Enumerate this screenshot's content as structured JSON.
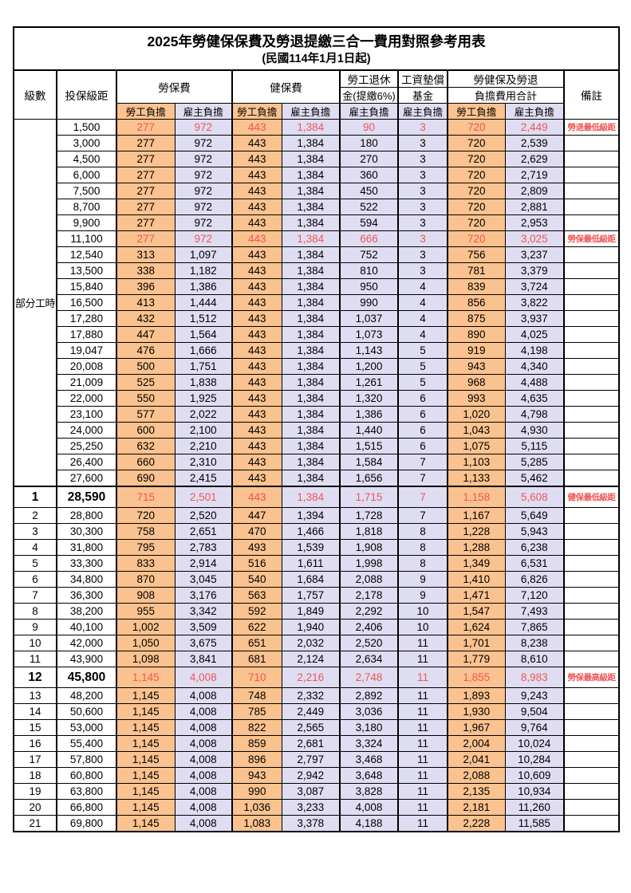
{
  "colors": {
    "employee_bg": "#FAC28F",
    "employer_bg": "#DFDDF2",
    "highlight_text": "#F25555",
    "border": "#000000"
  },
  "table": {
    "title": "2025年勞健保保費及勞退提繳三合一費用對照參考用表",
    "subtitle": "(民國114年1月1日起)",
    "columns": {
      "level": "級數",
      "bracket": "投保級距",
      "labor": "勞保費",
      "health": "健保費",
      "pension_l1": "勞工退休",
      "pension_l2": "金(提繳6%)",
      "fund_l1": "工資墊償",
      "fund_l2": "基金",
      "total_l1": "勞健保及勞退",
      "total_l2": "負擔費用合計",
      "remark": "備註",
      "employee": "勞工負擔",
      "employer": "雇主負擔"
    },
    "part_time_label": "部分工時",
    "rows": [
      {
        "level": "",
        "bracket": "1,500",
        "values": [
          "277",
          "972",
          "443",
          "1,384",
          "90",
          "3",
          "720",
          "2,449"
        ],
        "remark": "勞退最低級距",
        "highlight": true,
        "emphasis": false
      },
      {
        "level": "",
        "bracket": "3,000",
        "values": [
          "277",
          "972",
          "443",
          "1,384",
          "180",
          "3",
          "720",
          "2,539"
        ],
        "remark": "",
        "highlight": false,
        "emphasis": false
      },
      {
        "level": "",
        "bracket": "4,500",
        "values": [
          "277",
          "972",
          "443",
          "1,384",
          "270",
          "3",
          "720",
          "2,629"
        ],
        "remark": "",
        "highlight": false,
        "emphasis": false
      },
      {
        "level": "",
        "bracket": "6,000",
        "values": [
          "277",
          "972",
          "443",
          "1,384",
          "360",
          "3",
          "720",
          "2,719"
        ],
        "remark": "",
        "highlight": false,
        "emphasis": false
      },
      {
        "level": "",
        "bracket": "7,500",
        "values": [
          "277",
          "972",
          "443",
          "1,384",
          "450",
          "3",
          "720",
          "2,809"
        ],
        "remark": "",
        "highlight": false,
        "emphasis": false
      },
      {
        "level": "",
        "bracket": "8,700",
        "values": [
          "277",
          "972",
          "443",
          "1,384",
          "522",
          "3",
          "720",
          "2,881"
        ],
        "remark": "",
        "highlight": false,
        "emphasis": false
      },
      {
        "level": "",
        "bracket": "9,900",
        "values": [
          "277",
          "972",
          "443",
          "1,384",
          "594",
          "3",
          "720",
          "2,953"
        ],
        "remark": "",
        "highlight": false,
        "emphasis": false
      },
      {
        "level": "",
        "bracket": "11,100",
        "values": [
          "277",
          "972",
          "443",
          "1,384",
          "666",
          "3",
          "720",
          "3,025"
        ],
        "remark": "勞保最低級距",
        "highlight": true,
        "emphasis": false
      },
      {
        "level": "",
        "bracket": "12,540",
        "values": [
          "313",
          "1,097",
          "443",
          "1,384",
          "752",
          "3",
          "756",
          "3,237"
        ],
        "remark": "",
        "highlight": false,
        "emphasis": false
      },
      {
        "level": "",
        "bracket": "13,500",
        "values": [
          "338",
          "1,182",
          "443",
          "1,384",
          "810",
          "3",
          "781",
          "3,379"
        ],
        "remark": "",
        "highlight": false,
        "emphasis": false
      },
      {
        "level": "",
        "bracket": "15,840",
        "values": [
          "396",
          "1,386",
          "443",
          "1,384",
          "950",
          "4",
          "839",
          "3,724"
        ],
        "remark": "",
        "highlight": false,
        "emphasis": false
      },
      {
        "level": "",
        "bracket": "16,500",
        "values": [
          "413",
          "1,444",
          "443",
          "1,384",
          "990",
          "4",
          "856",
          "3,822"
        ],
        "remark": "",
        "highlight": false,
        "emphasis": false
      },
      {
        "level": "",
        "bracket": "17,280",
        "values": [
          "432",
          "1,512",
          "443",
          "1,384",
          "1,037",
          "4",
          "875",
          "3,937"
        ],
        "remark": "",
        "highlight": false,
        "emphasis": false
      },
      {
        "level": "",
        "bracket": "17,880",
        "values": [
          "447",
          "1,564",
          "443",
          "1,384",
          "1,073",
          "4",
          "890",
          "4,025"
        ],
        "remark": "",
        "highlight": false,
        "emphasis": false
      },
      {
        "level": "",
        "bracket": "19,047",
        "values": [
          "476",
          "1,666",
          "443",
          "1,384",
          "1,143",
          "5",
          "919",
          "4,198"
        ],
        "remark": "",
        "highlight": false,
        "emphasis": false
      },
      {
        "level": "",
        "bracket": "20,008",
        "values": [
          "500",
          "1,751",
          "443",
          "1,384",
          "1,200",
          "5",
          "943",
          "4,340"
        ],
        "remark": "",
        "highlight": false,
        "emphasis": false
      },
      {
        "level": "",
        "bracket": "21,009",
        "values": [
          "525",
          "1,838",
          "443",
          "1,384",
          "1,261",
          "5",
          "968",
          "4,488"
        ],
        "remark": "",
        "highlight": false,
        "emphasis": false
      },
      {
        "level": "",
        "bracket": "22,000",
        "values": [
          "550",
          "1,925",
          "443",
          "1,384",
          "1,320",
          "6",
          "993",
          "4,635"
        ],
        "remark": "",
        "highlight": false,
        "emphasis": false
      },
      {
        "level": "",
        "bracket": "23,100",
        "values": [
          "577",
          "2,022",
          "443",
          "1,384",
          "1,386",
          "6",
          "1,020",
          "4,798"
        ],
        "remark": "",
        "highlight": false,
        "emphasis": false
      },
      {
        "level": "",
        "bracket": "24,000",
        "values": [
          "600",
          "2,100",
          "443",
          "1,384",
          "1,440",
          "6",
          "1,043",
          "4,930"
        ],
        "remark": "",
        "highlight": false,
        "emphasis": false
      },
      {
        "level": "",
        "bracket": "25,250",
        "values": [
          "632",
          "2,210",
          "443",
          "1,384",
          "1,515",
          "6",
          "1,075",
          "5,115"
        ],
        "remark": "",
        "highlight": false,
        "emphasis": false
      },
      {
        "level": "",
        "bracket": "26,400",
        "values": [
          "660",
          "2,310",
          "443",
          "1,384",
          "1,584",
          "7",
          "1,103",
          "5,285"
        ],
        "remark": "",
        "highlight": false,
        "emphasis": false
      },
      {
        "level": "",
        "bracket": "27,600",
        "values": [
          "690",
          "2,415",
          "443",
          "1,384",
          "1,656",
          "7",
          "1,133",
          "5,462"
        ],
        "remark": "",
        "highlight": false,
        "emphasis": false
      },
      {
        "level": "1",
        "bracket": "28,590",
        "values": [
          "715",
          "2,501",
          "443",
          "1,384",
          "1,715",
          "7",
          "1,158",
          "5,608"
        ],
        "remark": "健保最低級距",
        "highlight": true,
        "emphasis": true
      },
      {
        "level": "2",
        "bracket": "28,800",
        "values": [
          "720",
          "2,520",
          "447",
          "1,394",
          "1,728",
          "7",
          "1,167",
          "5,649"
        ],
        "remark": "",
        "highlight": false,
        "emphasis": false
      },
      {
        "level": "3",
        "bracket": "30,300",
        "values": [
          "758",
          "2,651",
          "470",
          "1,466",
          "1,818",
          "8",
          "1,228",
          "5,943"
        ],
        "remark": "",
        "highlight": false,
        "emphasis": false
      },
      {
        "level": "4",
        "bracket": "31,800",
        "values": [
          "795",
          "2,783",
          "493",
          "1,539",
          "1,908",
          "8",
          "1,288",
          "6,238"
        ],
        "remark": "",
        "highlight": false,
        "emphasis": false
      },
      {
        "level": "5",
        "bracket": "33,300",
        "values": [
          "833",
          "2,914",
          "516",
          "1,611",
          "1,998",
          "8",
          "1,349",
          "6,531"
        ],
        "remark": "",
        "highlight": false,
        "emphasis": false
      },
      {
        "level": "6",
        "bracket": "34,800",
        "values": [
          "870",
          "3,045",
          "540",
          "1,684",
          "2,088",
          "9",
          "1,410",
          "6,826"
        ],
        "remark": "",
        "highlight": false,
        "emphasis": false
      },
      {
        "level": "7",
        "bracket": "36,300",
        "values": [
          "908",
          "3,176",
          "563",
          "1,757",
          "2,178",
          "9",
          "1,471",
          "7,120"
        ],
        "remark": "",
        "highlight": false,
        "emphasis": false
      },
      {
        "level": "8",
        "bracket": "38,200",
        "values": [
          "955",
          "3,342",
          "592",
          "1,849",
          "2,292",
          "10",
          "1,547",
          "7,493"
        ],
        "remark": "",
        "highlight": false,
        "emphasis": false
      },
      {
        "level": "9",
        "bracket": "40,100",
        "values": [
          "1,002",
          "3,509",
          "622",
          "1,940",
          "2,406",
          "10",
          "1,624",
          "7,865"
        ],
        "remark": "",
        "highlight": false,
        "emphasis": false
      },
      {
        "level": "10",
        "bracket": "42,000",
        "values": [
          "1,050",
          "3,675",
          "651",
          "2,032",
          "2,520",
          "11",
          "1,701",
          "8,238"
        ],
        "remark": "",
        "highlight": false,
        "emphasis": false
      },
      {
        "level": "11",
        "bracket": "43,900",
        "values": [
          "1,098",
          "3,841",
          "681",
          "2,124",
          "2,634",
          "11",
          "1,779",
          "8,610"
        ],
        "remark": "",
        "highlight": false,
        "emphasis": false
      },
      {
        "level": "12",
        "bracket": "45,800",
        "values": [
          "1,145",
          "4,008",
          "710",
          "2,216",
          "2,748",
          "11",
          "1,855",
          "8,983"
        ],
        "remark": "勞保最高級距",
        "highlight": true,
        "emphasis": true
      },
      {
        "level": "13",
        "bracket": "48,200",
        "values": [
          "1,145",
          "4,008",
          "748",
          "2,332",
          "2,892",
          "11",
          "1,893",
          "9,243"
        ],
        "remark": "",
        "highlight": false,
        "emphasis": false
      },
      {
        "level": "14",
        "bracket": "50,600",
        "values": [
          "1,145",
          "4,008",
          "785",
          "2,449",
          "3,036",
          "11",
          "1,930",
          "9,504"
        ],
        "remark": "",
        "highlight": false,
        "emphasis": false
      },
      {
        "level": "15",
        "bracket": "53,000",
        "values": [
          "1,145",
          "4,008",
          "822",
          "2,565",
          "3,180",
          "11",
          "1,967",
          "9,764"
        ],
        "remark": "",
        "highlight": false,
        "emphasis": false
      },
      {
        "level": "16",
        "bracket": "55,400",
        "values": [
          "1,145",
          "4,008",
          "859",
          "2,681",
          "3,324",
          "11",
          "2,004",
          "10,024"
        ],
        "remark": "",
        "highlight": false,
        "emphasis": false
      },
      {
        "level": "17",
        "bracket": "57,800",
        "values": [
          "1,145",
          "4,008",
          "896",
          "2,797",
          "3,468",
          "11",
          "2,041",
          "10,284"
        ],
        "remark": "",
        "highlight": false,
        "emphasis": false
      },
      {
        "level": "18",
        "bracket": "60,800",
        "values": [
          "1,145",
          "4,008",
          "943",
          "2,942",
          "3,648",
          "11",
          "2,088",
          "10,609"
        ],
        "remark": "",
        "highlight": false,
        "emphasis": false
      },
      {
        "level": "19",
        "bracket": "63,800",
        "values": [
          "1,145",
          "4,008",
          "990",
          "3,087",
          "3,828",
          "11",
          "2,135",
          "10,934"
        ],
        "remark": "",
        "highlight": false,
        "emphasis": false
      },
      {
        "level": "20",
        "bracket": "66,800",
        "values": [
          "1,145",
          "4,008",
          "1,036",
          "3,233",
          "4,008",
          "11",
          "2,181",
          "11,260"
        ],
        "remark": "",
        "highlight": false,
        "emphasis": false
      },
      {
        "level": "21",
        "bracket": "69,800",
        "values": [
          "1,145",
          "4,008",
          "1,083",
          "3,378",
          "4,188",
          "11",
          "2,228",
          "11,585"
        ],
        "remark": "",
        "highlight": false,
        "emphasis": false
      }
    ]
  }
}
